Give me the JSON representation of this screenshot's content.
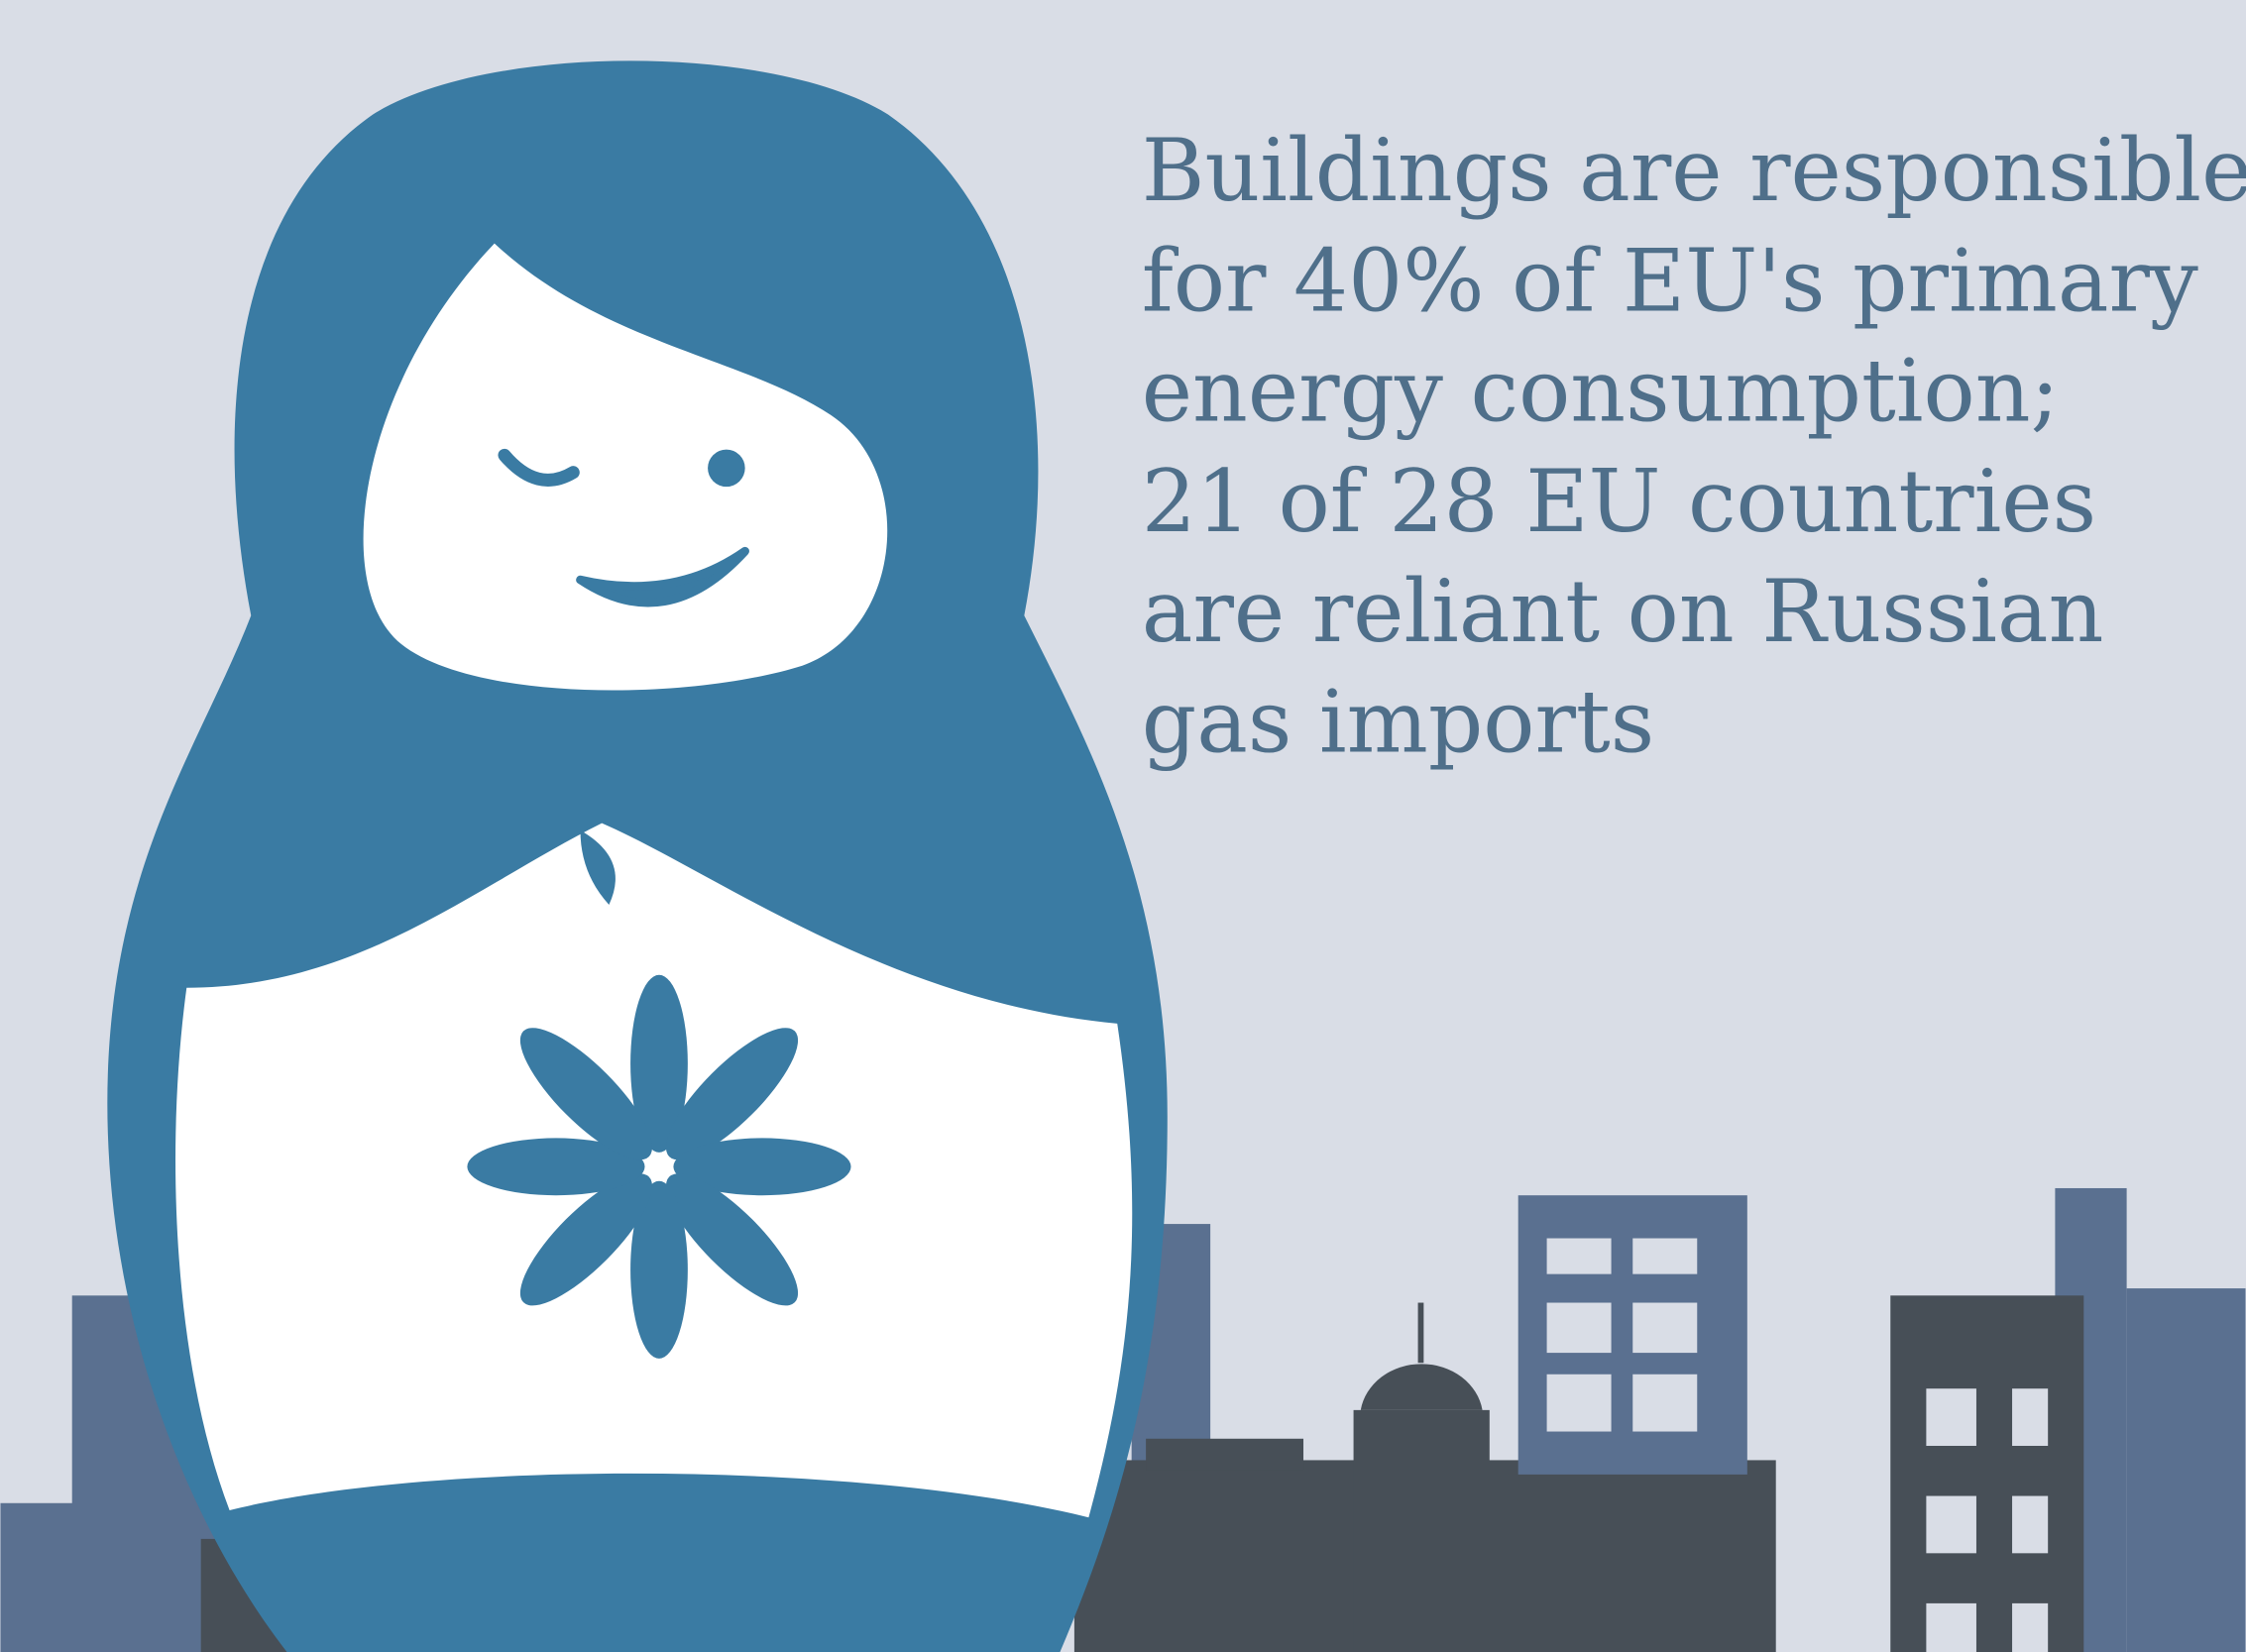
{
  "text": {
    "lines": [
      "Buildings are responsible",
      "for 40% of EU's primary",
      "energy consumption;",
      "21 of 28 EU countries",
      "are reliant on Russian",
      "gas imports"
    ]
  }
}
